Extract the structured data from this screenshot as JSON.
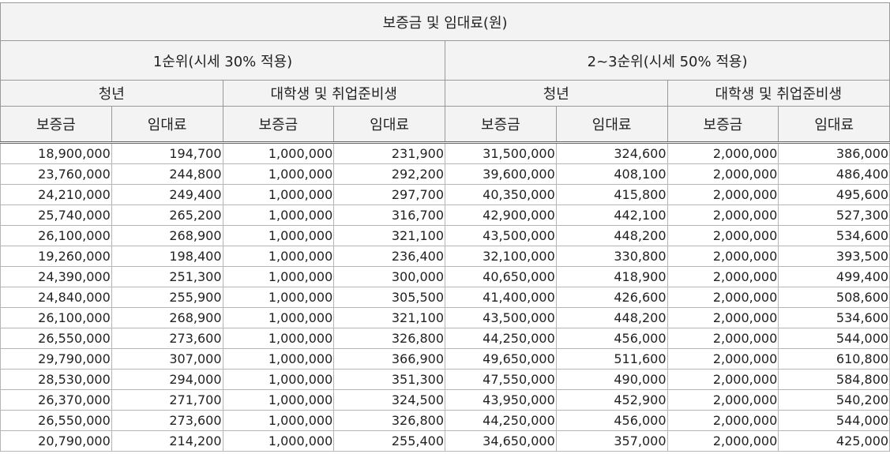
{
  "table": {
    "title": "보증금 및 임대료(원)",
    "groups": [
      "1순위(시세 30% 적용)",
      "2~3순위(시세 50% 적용)"
    ],
    "subgroups": [
      "청년",
      "대학생 및 취업준비생",
      "청년",
      "대학생 및 취업준비생"
    ],
    "columns": [
      "보증금",
      "임대료",
      "보증금",
      "임대료",
      "보증금",
      "임대료",
      "보증금",
      "임대료"
    ],
    "rows": [
      [
        "18,900,000",
        "194,700",
        "1,000,000",
        "231,900",
        "31,500,000",
        "324,600",
        "2,000,000",
        "386,000"
      ],
      [
        "23,760,000",
        "244,800",
        "1,000,000",
        "292,200",
        "39,600,000",
        "408,100",
        "2,000,000",
        "486,400"
      ],
      [
        "24,210,000",
        "249,400",
        "1,000,000",
        "297,700",
        "40,350,000",
        "415,800",
        "2,000,000",
        "495,600"
      ],
      [
        "25,740,000",
        "265,200",
        "1,000,000",
        "316,700",
        "42,900,000",
        "442,100",
        "2,000,000",
        "527,300"
      ],
      [
        "26,100,000",
        "268,900",
        "1,000,000",
        "321,100",
        "43,500,000",
        "448,200",
        "2,000,000",
        "534,600"
      ],
      [
        "19,260,000",
        "198,400",
        "1,000,000",
        "236,400",
        "32,100,000",
        "330,800",
        "2,000,000",
        "393,500"
      ],
      [
        "24,390,000",
        "251,300",
        "1,000,000",
        "300,000",
        "40,650,000",
        "418,900",
        "2,000,000",
        "499,400"
      ],
      [
        "24,840,000",
        "255,900",
        "1,000,000",
        "305,500",
        "41,400,000",
        "426,600",
        "2,000,000",
        "508,600"
      ],
      [
        "26,100,000",
        "268,900",
        "1,000,000",
        "321,100",
        "43,500,000",
        "448,200",
        "2,000,000",
        "534,600"
      ],
      [
        "26,550,000",
        "273,600",
        "1,000,000",
        "326,800",
        "44,250,000",
        "456,000",
        "2,000,000",
        "544,000"
      ],
      [
        "29,790,000",
        "307,000",
        "1,000,000",
        "366,900",
        "49,650,000",
        "511,600",
        "2,000,000",
        "610,800"
      ],
      [
        "28,530,000",
        "294,000",
        "1,000,000",
        "351,300",
        "47,550,000",
        "490,000",
        "2,000,000",
        "584,800"
      ],
      [
        "26,370,000",
        "271,700",
        "1,000,000",
        "324,500",
        "43,950,000",
        "452,900",
        "2,000,000",
        "540,200"
      ],
      [
        "26,550,000",
        "273,600",
        "1,000,000",
        "326,800",
        "44,250,000",
        "456,000",
        "2,000,000",
        "544,000"
      ],
      [
        "20,790,000",
        "214,200",
        "1,000,000",
        "255,400",
        "34,650,000",
        "357,000",
        "2,000,000",
        "425,000"
      ]
    ]
  }
}
